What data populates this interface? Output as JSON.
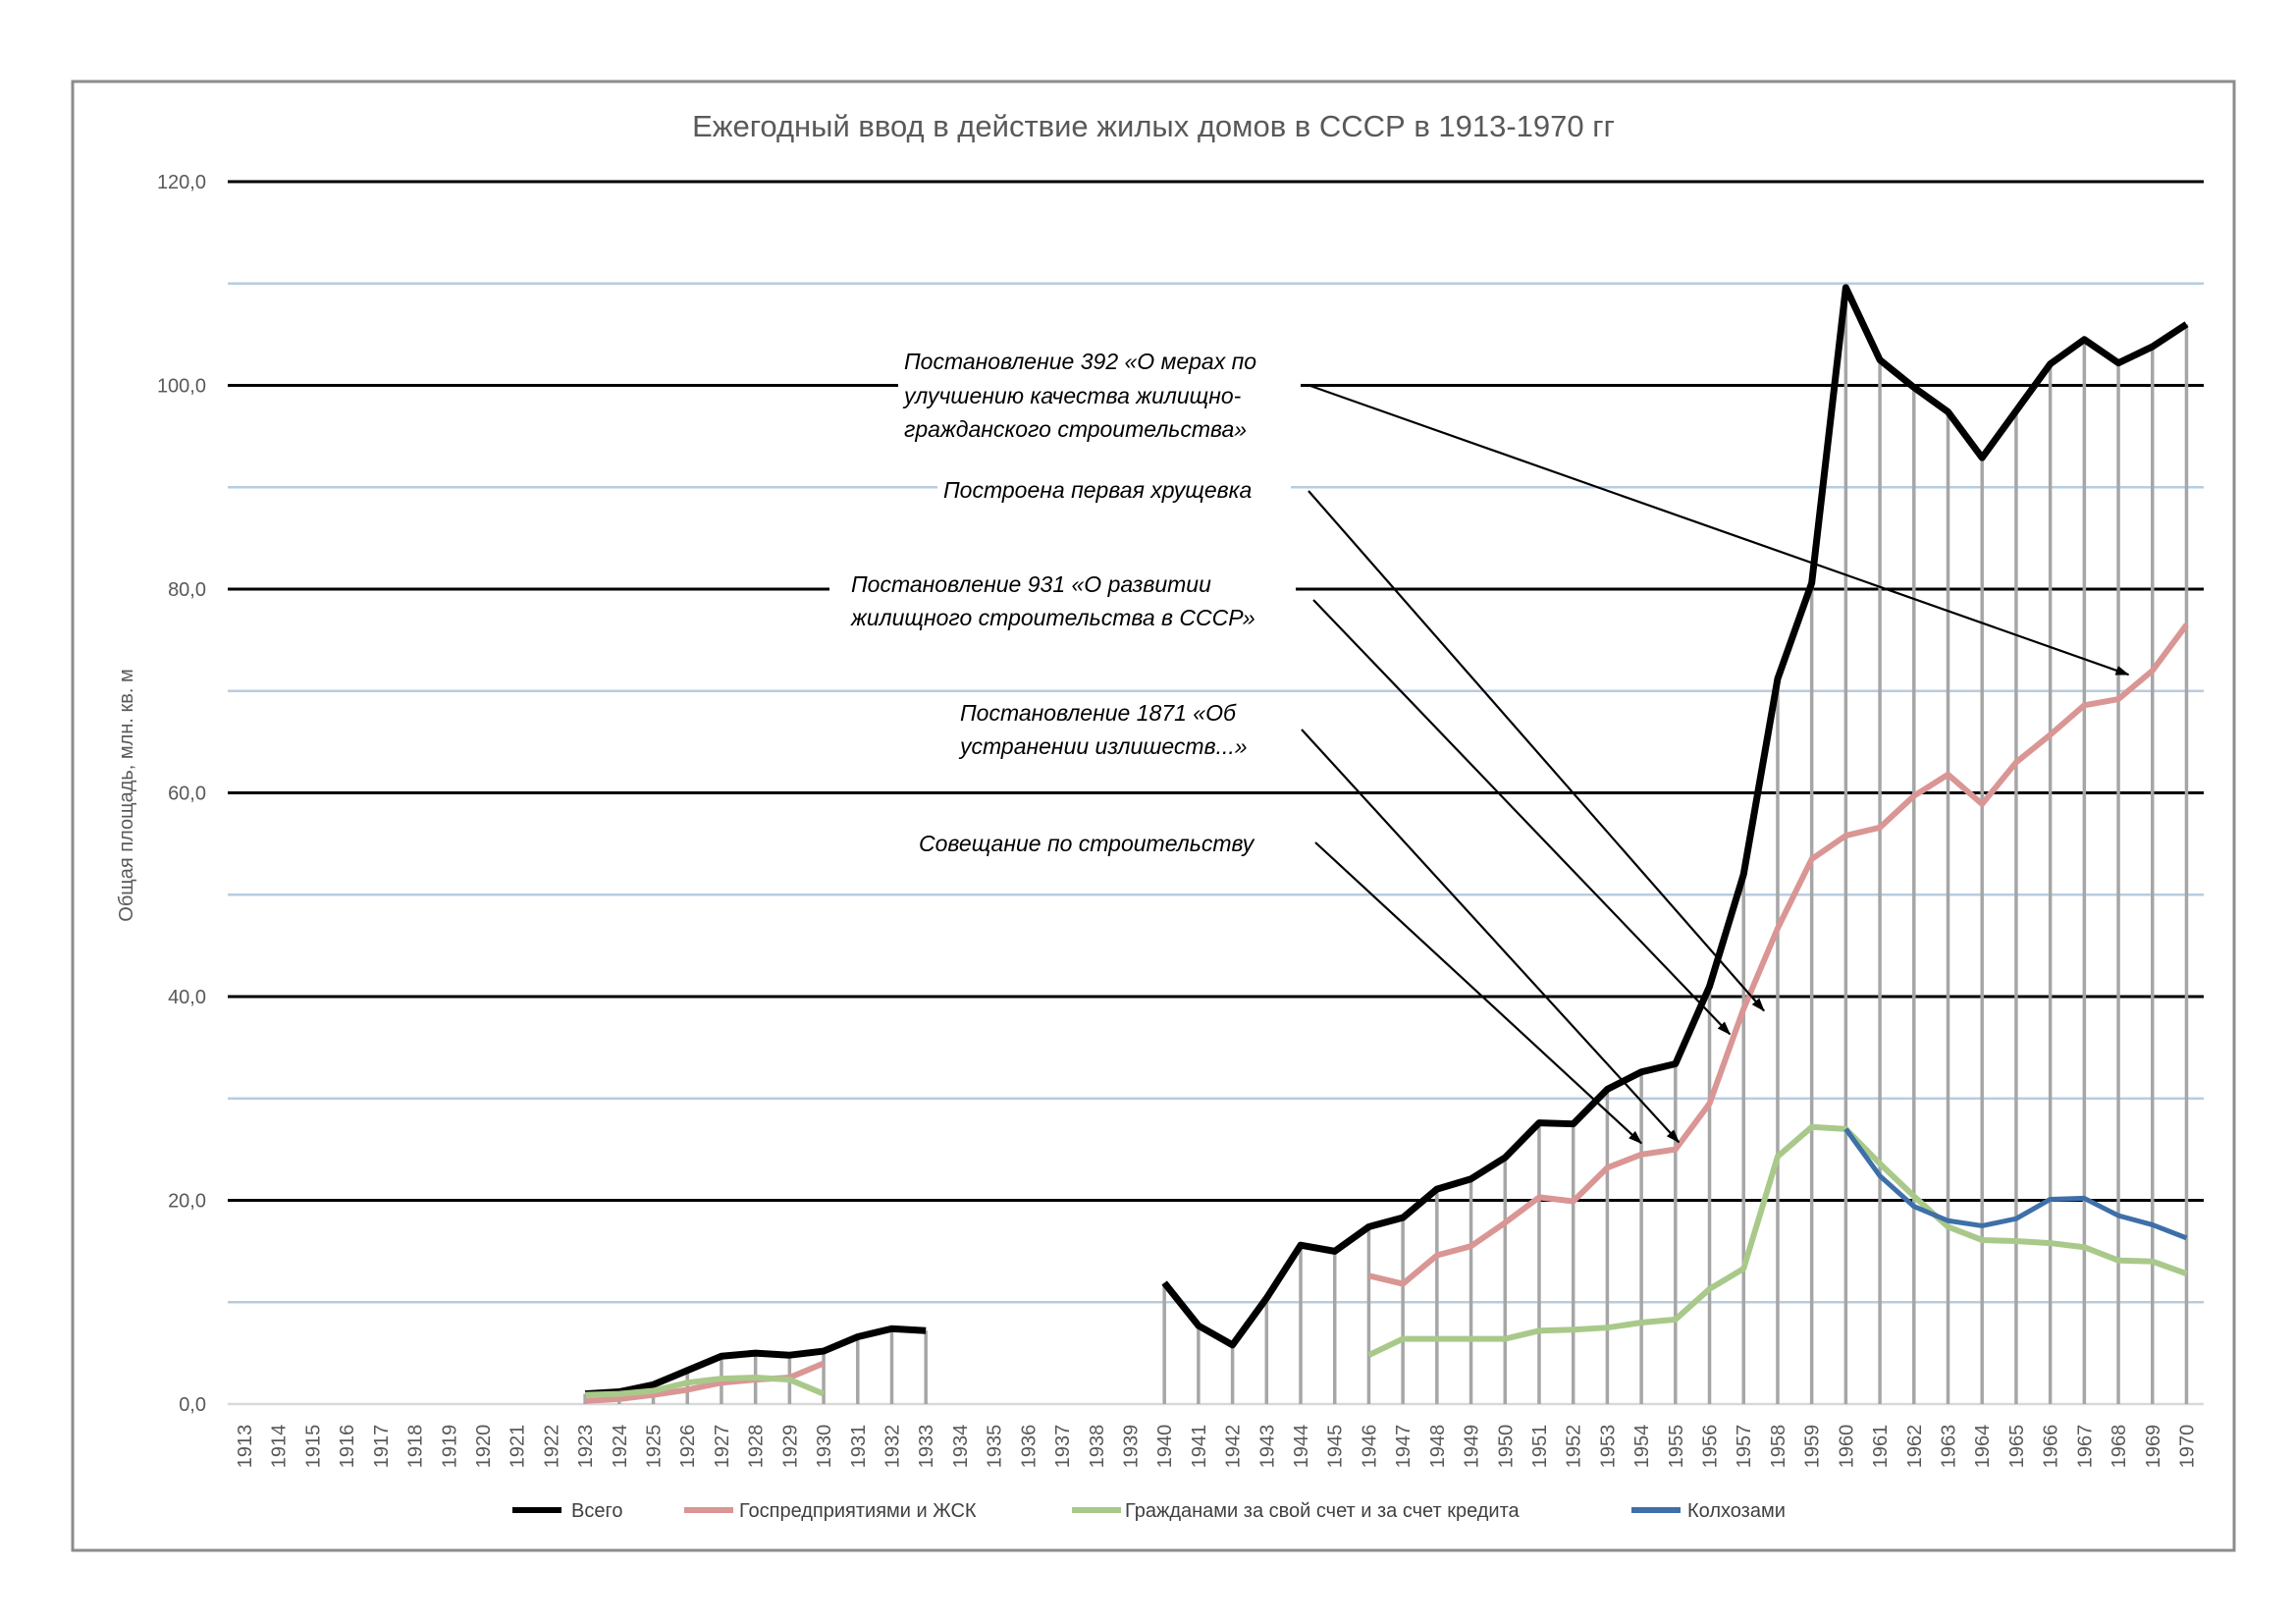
{
  "chart_data": {
    "type": "line",
    "title": "Ежегодный ввод в действие жилых домов в СССР в 1913-1970 гг",
    "xlabel": "",
    "ylabel": "Общая площадь, млн. кв. м",
    "ylim": [
      0,
      120
    ],
    "yticks": [
      "0,0",
      "20,0",
      "40,0",
      "60,0",
      "80,0",
      "100,0",
      "120,0"
    ],
    "ytick_values": [
      0,
      20,
      40,
      60,
      80,
      100,
      120
    ],
    "minor_grid": [
      10,
      30,
      50,
      70,
      90,
      110
    ],
    "grid": true,
    "legend_position": "bottom",
    "x": [
      1913,
      1914,
      1915,
      1916,
      1917,
      1918,
      1919,
      1920,
      1921,
      1922,
      1923,
      1924,
      1925,
      1926,
      1927,
      1928,
      1929,
      1930,
      1931,
      1932,
      1933,
      1934,
      1935,
      1936,
      1937,
      1938,
      1939,
      1940,
      1941,
      1942,
      1943,
      1944,
      1945,
      1946,
      1947,
      1948,
      1949,
      1950,
      1951,
      1952,
      1953,
      1954,
      1955,
      1956,
      1957,
      1958,
      1959,
      1960,
      1961,
      1962,
      1963,
      1964,
      1965,
      1966,
      1967,
      1968,
      1969,
      1970
    ],
    "series": [
      {
        "name": "Всего",
        "color": "#000000",
        "values": [
          null,
          null,
          null,
          null,
          null,
          null,
          null,
          null,
          null,
          null,
          1.0,
          1.2,
          1.9,
          3.3,
          4.7,
          5.0,
          4.8,
          5.2,
          6.6,
          7.4,
          7.2,
          null,
          null,
          null,
          null,
          null,
          null,
          11.9,
          7.7,
          5.8,
          10.4,
          15.6,
          15.0,
          17.4,
          18.3,
          21.1,
          22.1,
          24.2,
          27.6,
          27.5,
          30.9,
          32.6,
          33.4,
          41.0,
          52.0,
          71.2,
          80.6,
          109.6,
          102.5,
          99.8,
          97.4,
          92.9,
          97.5,
          102.1,
          104.5,
          102.2,
          103.8,
          106.0
        ]
      },
      {
        "name": "Госпредприятиями и ЖСК",
        "color": "#d99694",
        "values": [
          null,
          null,
          null,
          null,
          null,
          null,
          null,
          null,
          null,
          null,
          0.3,
          0.5,
          0.9,
          1.4,
          2.1,
          2.4,
          2.6,
          4.0,
          null,
          null,
          null,
          null,
          null,
          null,
          null,
          null,
          null,
          null,
          null,
          null,
          null,
          null,
          null,
          12.6,
          11.8,
          14.6,
          15.5,
          17.8,
          20.3,
          19.9,
          23.2,
          24.5,
          25.0,
          29.5,
          38.8,
          46.7,
          53.5,
          55.8,
          56.6,
          59.7,
          61.8,
          58.9,
          63.0,
          65.7,
          68.6,
          69.2,
          72.0,
          76.5
        ]
      },
      {
        "name": "Гражданами за свой счет и за счет кредита",
        "color": "#a9c98a",
        "values": [
          null,
          null,
          null,
          null,
          null,
          null,
          null,
          null,
          null,
          null,
          0.9,
          1.0,
          1.3,
          2.1,
          2.5,
          2.6,
          2.4,
          1.0,
          null,
          null,
          null,
          null,
          null,
          null,
          null,
          null,
          null,
          null,
          null,
          null,
          null,
          null,
          null,
          4.8,
          6.4,
          6.4,
          6.4,
          6.4,
          7.2,
          7.3,
          7.5,
          8.0,
          8.3,
          11.3,
          13.3,
          24.3,
          27.2,
          27.0,
          23.6,
          20.4,
          17.4,
          16.1,
          16.0,
          15.8,
          15.4,
          14.1,
          14.0,
          12.8
        ]
      },
      {
        "name": "Колхозами",
        "color": "#3e6fa8",
        "values": [
          null,
          null,
          null,
          null,
          null,
          null,
          null,
          null,
          null,
          null,
          null,
          null,
          null,
          null,
          null,
          null,
          null,
          null,
          null,
          null,
          null,
          null,
          null,
          null,
          null,
          null,
          null,
          null,
          null,
          null,
          null,
          null,
          null,
          null,
          null,
          null,
          null,
          null,
          null,
          null,
          null,
          null,
          null,
          null,
          null,
          null,
          null,
          27.0,
          22.4,
          19.4,
          18.0,
          17.5,
          18.2,
          20.1,
          20.2,
          18.5,
          17.6,
          16.3
        ]
      }
    ],
    "annotations": [
      {
        "lines": [
          "Постановление 392 «О мерах по",
          "улучшению качества жилищно-",
          "гражданского строительства»"
        ],
        "target_year": 1968.3,
        "target_value": 71.6
      },
      {
        "lines": [
          "Построена первая хрущевка"
        ],
        "target_year": 1957.6,
        "target_value": 38.6
      },
      {
        "lines": [
          "Постановление 931 «О развитии",
          "жилищного строительства в СССР»"
        ],
        "target_year": 1956.6,
        "target_value": 36.3
      },
      {
        "lines": [
          "Постановление 1871 «Об",
          "устранении излишеств...»"
        ],
        "target_year": 1955.1,
        "target_value": 25.7
      },
      {
        "lines": [
          "Совещание по строительству"
        ],
        "target_year": 1954.0,
        "target_value": 25.6
      }
    ]
  }
}
